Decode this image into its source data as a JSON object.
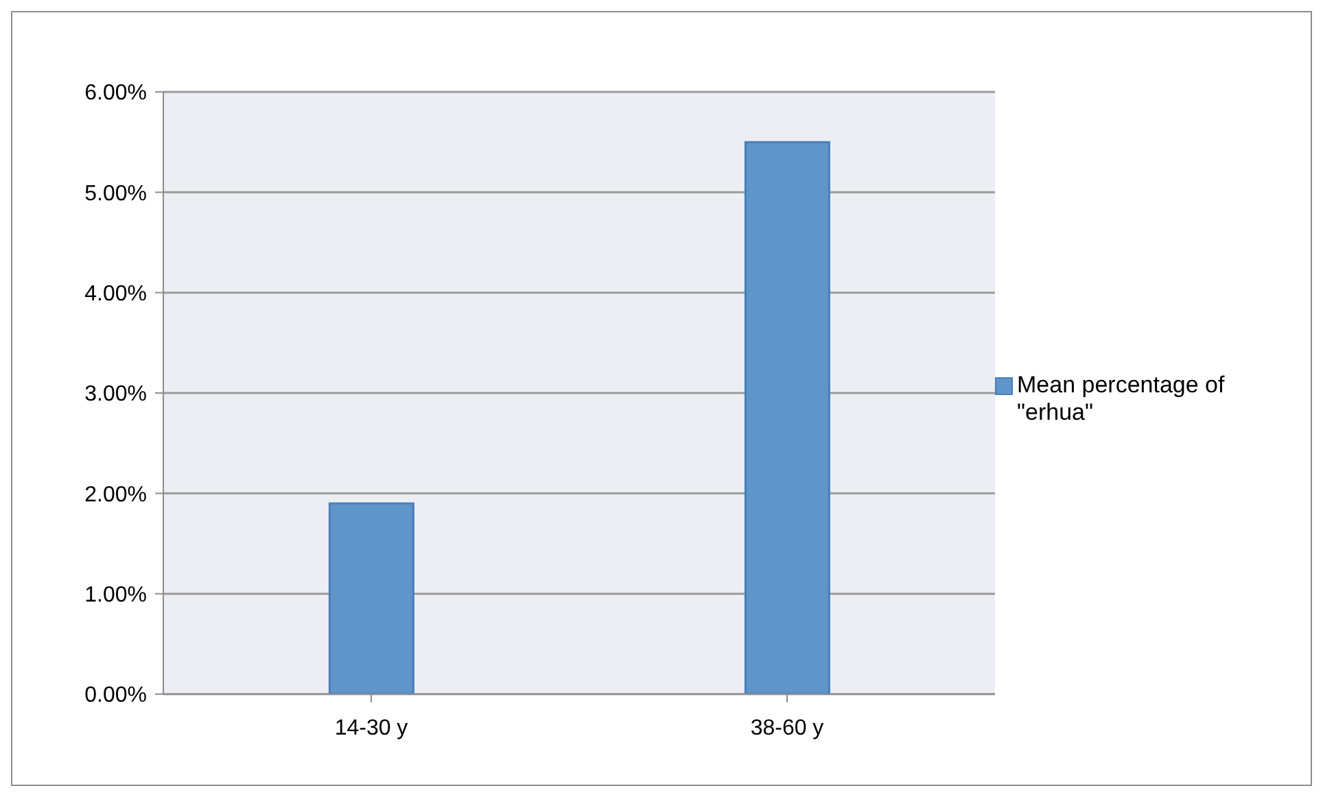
{
  "chart_data": {
    "type": "bar",
    "categories": [
      "14-30 y",
      "38-60 y"
    ],
    "series": [
      {
        "name": "Mean percentage of \"erhua\"",
        "color": "#5f95c8",
        "values": [
          1.9,
          5.5
        ]
      }
    ],
    "ylim": [
      0,
      6
    ],
    "yticks": [
      {
        "value": 0,
        "label": "0.00%"
      },
      {
        "value": 1,
        "label": "1.00%"
      },
      {
        "value": 2,
        "label": "2.00%"
      },
      {
        "value": 3,
        "label": "3.00%"
      },
      {
        "value": 4,
        "label": "4.00%"
      },
      {
        "value": 5,
        "label": "5.00%"
      },
      {
        "value": 6,
        "label": "6.00%"
      }
    ],
    "grid": "y",
    "legend": "right"
  }
}
